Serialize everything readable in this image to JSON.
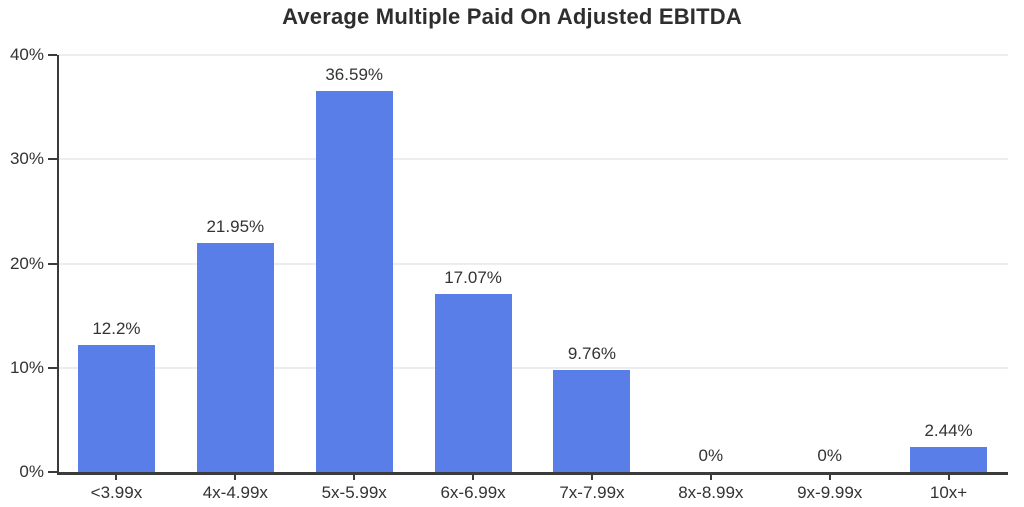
{
  "title": "Average Multiple Paid On Adjusted EBITDA",
  "colors": {
    "bar": "#5a7ee8",
    "axis": "#3b3b3b",
    "grid": "#ededed",
    "text": "#333333",
    "title_text": "#2e2e2e",
    "background": "#ffffff"
  },
  "chart_data": {
    "type": "bar",
    "title": "Average Multiple Paid On Adjusted EBITDA",
    "categories": [
      "<3.99x",
      "4x-4.99x",
      "5x-5.99x",
      "6x-6.99x",
      "7x-7.99x",
      "8x-8.99x",
      "9x-9.99x",
      "10x+"
    ],
    "values": [
      12.2,
      21.95,
      36.59,
      17.07,
      9.76,
      0,
      0,
      2.44
    ],
    "value_labels": [
      "12.2%",
      "21.95%",
      "36.59%",
      "17.07%",
      "9.76%",
      "0%",
      "0%",
      "2.44%"
    ],
    "xlabel": "",
    "ylabel": "",
    "ylim": [
      0,
      40
    ],
    "yticks": [
      0,
      10,
      20,
      30,
      40
    ],
    "ytick_labels": [
      "0%",
      "10%",
      "20%",
      "30%",
      "40%"
    ],
    "grid": true,
    "legend": false
  }
}
